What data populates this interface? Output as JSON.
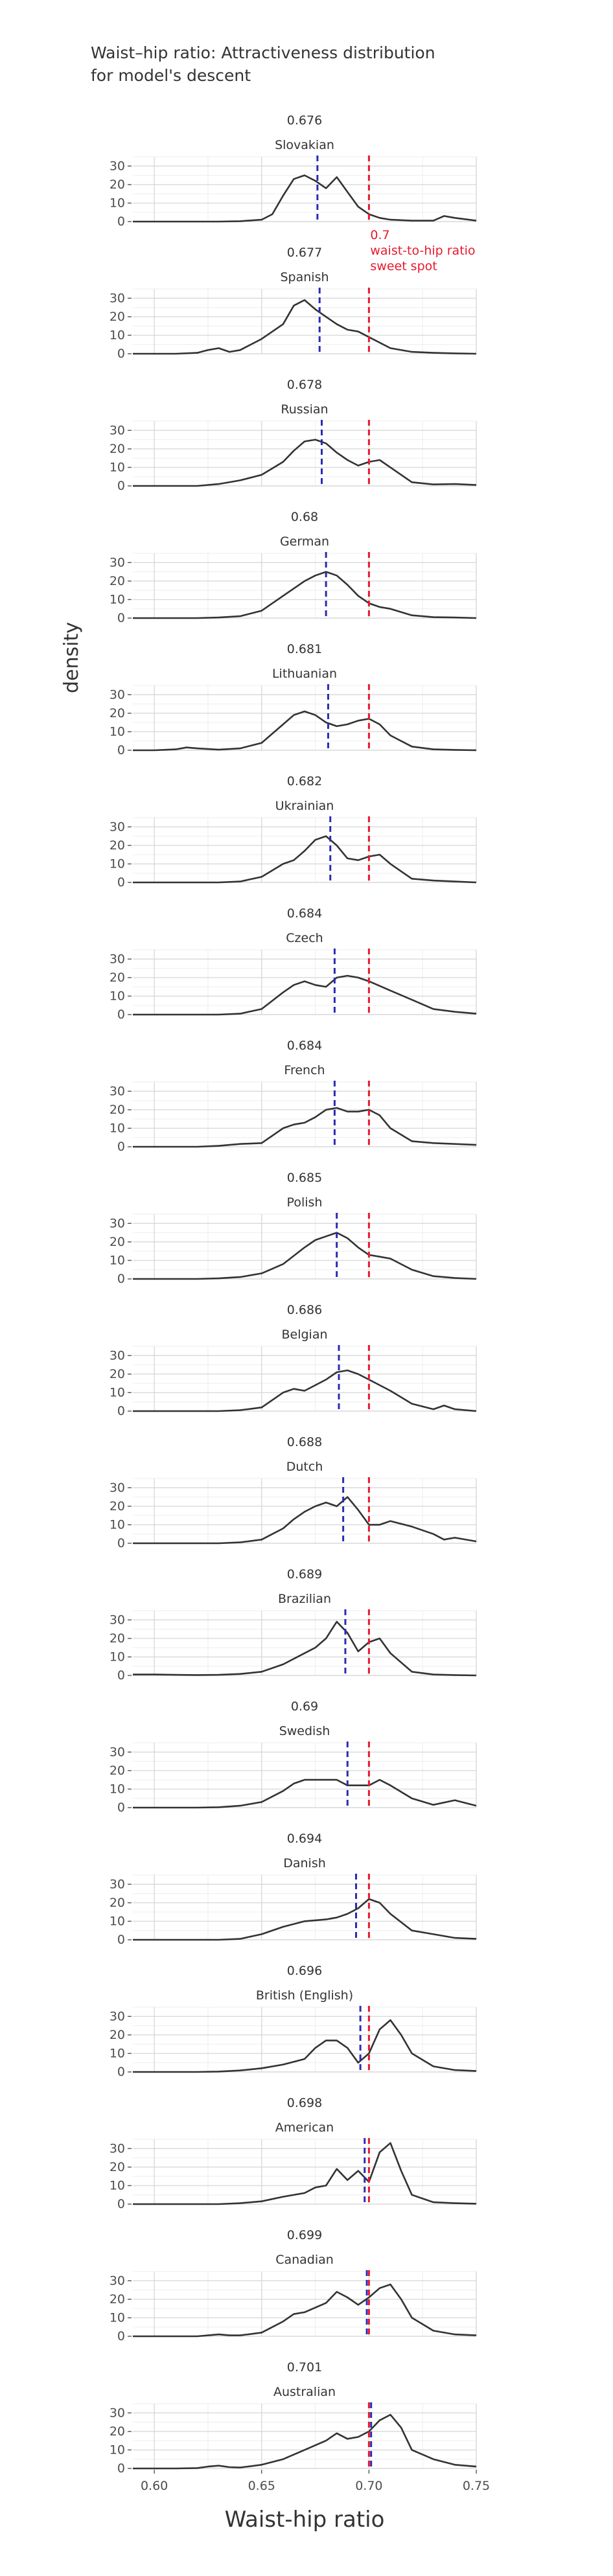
{
  "chart_data": {
    "type": "area",
    "title": [
      "Waist–hip ratio: Attractiveness distribution",
      "for model's descent"
    ],
    "xlabel": "Waist-hip ratio",
    "ylabel": "density",
    "xlim": [
      0.59,
      0.75
    ],
    "ylim": [
      0,
      35
    ],
    "x_ticks": [
      0.6,
      0.65,
      0.7,
      0.75
    ],
    "x_tick_labels": [
      "0.60",
      "0.65",
      "0.70",
      "0.75"
    ],
    "y_ticks": [
      0,
      10,
      20,
      30
    ],
    "y_tick_labels": [
      "0",
      "10",
      "20",
      "30"
    ],
    "grid": true,
    "reference_line": {
      "x": 0.7,
      "color": "#e8192c",
      "style": "dashed",
      "annotation": [
        "0.7",
        "waist-to-hip ratio",
        "sweet spot"
      ]
    },
    "mean_line_color": "#2b2bb3",
    "curve_color": "#333333",
    "facets": [
      {
        "mean_label": "0.676",
        "name": "Slovakian",
        "mean": 0.676,
        "x": [
          0.59,
          0.6,
          0.61,
          0.62,
          0.63,
          0.64,
          0.65,
          0.655,
          0.66,
          0.665,
          0.67,
          0.675,
          0.68,
          0.685,
          0.69,
          0.695,
          0.7,
          0.705,
          0.71,
          0.72,
          0.73,
          0.735,
          0.74,
          0.75
        ],
        "y": [
          0,
          0,
          0,
          0,
          0,
          0.2,
          1,
          4,
          14,
          23,
          25,
          22,
          18,
          24,
          16,
          8,
          4,
          2,
          1,
          0.5,
          0.5,
          3,
          2,
          0.5
        ]
      },
      {
        "mean_label": "0.677",
        "name": "Spanish",
        "mean": 0.677,
        "x": [
          0.59,
          0.6,
          0.61,
          0.62,
          0.625,
          0.63,
          0.635,
          0.64,
          0.65,
          0.66,
          0.665,
          0.67,
          0.675,
          0.68,
          0.685,
          0.69,
          0.695,
          0.7,
          0.71,
          0.72,
          0.73,
          0.74,
          0.75
        ],
        "y": [
          0,
          0,
          0,
          0.5,
          2,
          3,
          1,
          2,
          8,
          16,
          26,
          29,
          24,
          20,
          16,
          13,
          12,
          9,
          3,
          1,
          0.5,
          0.2,
          0
        ]
      },
      {
        "mean_label": "0.678",
        "name": "Russian",
        "mean": 0.678,
        "x": [
          0.59,
          0.6,
          0.61,
          0.62,
          0.63,
          0.64,
          0.65,
          0.66,
          0.665,
          0.67,
          0.675,
          0.68,
          0.685,
          0.69,
          0.695,
          0.7,
          0.705,
          0.71,
          0.72,
          0.73,
          0.74,
          0.75
        ],
        "y": [
          0,
          0,
          0,
          0,
          1,
          3,
          6,
          13,
          19,
          24,
          25,
          23,
          18,
          14,
          11,
          13,
          14,
          10,
          2,
          0.8,
          1,
          0.5
        ]
      },
      {
        "mean_label": "0.68",
        "name": "German",
        "mean": 0.68,
        "x": [
          0.59,
          0.6,
          0.61,
          0.62,
          0.63,
          0.64,
          0.65,
          0.66,
          0.67,
          0.675,
          0.68,
          0.685,
          0.69,
          0.695,
          0.7,
          0.705,
          0.71,
          0.72,
          0.73,
          0.74,
          0.75
        ],
        "y": [
          0,
          0,
          0,
          0,
          0.3,
          1,
          4,
          12,
          20,
          23,
          25,
          23,
          18,
          12,
          8,
          6,
          5,
          1.5,
          0.5,
          0.3,
          0
        ]
      },
      {
        "mean_label": "0.681",
        "name": "Lithuanian",
        "mean": 0.681,
        "x": [
          0.59,
          0.6,
          0.61,
          0.615,
          0.62,
          0.63,
          0.64,
          0.65,
          0.66,
          0.665,
          0.67,
          0.675,
          0.68,
          0.685,
          0.69,
          0.695,
          0.7,
          0.705,
          0.71,
          0.72,
          0.73,
          0.74,
          0.75
        ],
        "y": [
          0,
          0,
          0.5,
          1.5,
          1,
          0.3,
          1,
          4,
          14,
          19,
          21,
          19,
          15,
          13,
          14,
          16,
          17,
          14,
          8,
          2,
          0.5,
          0.2,
          0
        ]
      },
      {
        "mean_label": "0.682",
        "name": "Ukrainian",
        "mean": 0.682,
        "x": [
          0.59,
          0.6,
          0.61,
          0.62,
          0.63,
          0.64,
          0.65,
          0.66,
          0.665,
          0.67,
          0.675,
          0.68,
          0.685,
          0.69,
          0.695,
          0.7,
          0.705,
          0.71,
          0.72,
          0.73,
          0.74,
          0.75
        ],
        "y": [
          0,
          0,
          0,
          0,
          0,
          0.5,
          3,
          10,
          12,
          17,
          23,
          25,
          20,
          13,
          12,
          14,
          15,
          10,
          2,
          1,
          0.5,
          0
        ]
      },
      {
        "mean_label": "0.684",
        "name": "Czech",
        "mean": 0.684,
        "x": [
          0.59,
          0.6,
          0.61,
          0.62,
          0.63,
          0.64,
          0.65,
          0.66,
          0.665,
          0.67,
          0.675,
          0.68,
          0.685,
          0.69,
          0.695,
          0.7,
          0.71,
          0.72,
          0.73,
          0.74,
          0.75
        ],
        "y": [
          0,
          0,
          0,
          0,
          0,
          0.5,
          3,
          12,
          16,
          18,
          16,
          15,
          20,
          21,
          20,
          18,
          13,
          8,
          3,
          1.5,
          0.5
        ]
      },
      {
        "mean_label": "0.684",
        "name": "French",
        "mean": 0.684,
        "x": [
          0.59,
          0.6,
          0.61,
          0.62,
          0.63,
          0.64,
          0.65,
          0.66,
          0.665,
          0.67,
          0.675,
          0.68,
          0.685,
          0.69,
          0.695,
          0.7,
          0.705,
          0.71,
          0.72,
          0.73,
          0.74,
          0.75
        ],
        "y": [
          0,
          0,
          0,
          0,
          0.5,
          1.5,
          2,
          10,
          12,
          13,
          16,
          20,
          21,
          19,
          19,
          20,
          17,
          10,
          3,
          2,
          1.5,
          1
        ]
      },
      {
        "mean_label": "0.685",
        "name": "Polish",
        "mean": 0.685,
        "x": [
          0.59,
          0.6,
          0.61,
          0.62,
          0.63,
          0.64,
          0.65,
          0.66,
          0.67,
          0.675,
          0.68,
          0.685,
          0.69,
          0.695,
          0.7,
          0.705,
          0.71,
          0.72,
          0.73,
          0.74,
          0.75
        ],
        "y": [
          0,
          0,
          0,
          0,
          0.3,
          1,
          3,
          8,
          17,
          21,
          23,
          25,
          22,
          17,
          13,
          12,
          11,
          5,
          1.5,
          0.5,
          0
        ]
      },
      {
        "mean_label": "0.686",
        "name": "Belgian",
        "mean": 0.686,
        "x": [
          0.59,
          0.6,
          0.61,
          0.62,
          0.63,
          0.64,
          0.65,
          0.655,
          0.66,
          0.665,
          0.67,
          0.675,
          0.68,
          0.685,
          0.69,
          0.695,
          0.7,
          0.71,
          0.72,
          0.73,
          0.735,
          0.74,
          0.75
        ],
        "y": [
          0,
          0,
          0,
          0,
          0,
          0.5,
          2,
          6,
          10,
          12,
          11,
          14,
          17,
          21,
          22,
          20,
          17,
          11,
          4,
          1,
          3,
          1,
          0
        ]
      },
      {
        "mean_label": "0.688",
        "name": "Dutch",
        "mean": 0.688,
        "x": [
          0.59,
          0.6,
          0.61,
          0.62,
          0.63,
          0.64,
          0.65,
          0.66,
          0.665,
          0.67,
          0.675,
          0.68,
          0.685,
          0.69,
          0.695,
          0.7,
          0.705,
          0.71,
          0.72,
          0.73,
          0.735,
          0.74,
          0.75
        ],
        "y": [
          0,
          0,
          0,
          0,
          0,
          0.5,
          2,
          8,
          13,
          17,
          20,
          22,
          20,
          25,
          18,
          10,
          10,
          12,
          9,
          5,
          2,
          3,
          1
        ]
      },
      {
        "mean_label": "0.689",
        "name": "Brazilian",
        "mean": 0.689,
        "x": [
          0.59,
          0.6,
          0.61,
          0.62,
          0.63,
          0.64,
          0.65,
          0.66,
          0.67,
          0.675,
          0.68,
          0.685,
          0.69,
          0.695,
          0.7,
          0.705,
          0.71,
          0.72,
          0.73,
          0.74,
          0.75
        ],
        "y": [
          0.5,
          0.5,
          0.3,
          0.2,
          0.3,
          0.8,
          2,
          6,
          12,
          15,
          20,
          29,
          23,
          13,
          18,
          20,
          12,
          2,
          0.5,
          0.2,
          0
        ]
      },
      {
        "mean_label": "0.69",
        "name": "Swedish",
        "mean": 0.69,
        "x": [
          0.59,
          0.6,
          0.61,
          0.62,
          0.63,
          0.64,
          0.65,
          0.66,
          0.665,
          0.67,
          0.675,
          0.68,
          0.685,
          0.69,
          0.695,
          0.7,
          0.705,
          0.71,
          0.72,
          0.73,
          0.74,
          0.75
        ],
        "y": [
          0,
          0,
          0,
          0,
          0.2,
          1,
          3,
          9,
          13,
          15,
          15,
          15,
          15,
          12,
          12,
          12,
          15,
          12,
          5,
          1.5,
          4,
          1
        ]
      },
      {
        "mean_label": "0.694",
        "name": "Danish",
        "mean": 0.694,
        "x": [
          0.59,
          0.6,
          0.61,
          0.62,
          0.63,
          0.64,
          0.65,
          0.66,
          0.67,
          0.68,
          0.685,
          0.69,
          0.695,
          0.7,
          0.705,
          0.71,
          0.72,
          0.73,
          0.74,
          0.75
        ],
        "y": [
          0,
          0,
          0,
          0,
          0,
          0.5,
          3,
          7,
          10,
          11,
          12,
          14,
          17,
          22,
          20,
          14,
          5,
          3,
          1,
          0.5
        ]
      },
      {
        "mean_label": "0.696",
        "name": "British (English)",
        "mean": 0.696,
        "x": [
          0.59,
          0.6,
          0.61,
          0.62,
          0.63,
          0.64,
          0.65,
          0.66,
          0.67,
          0.675,
          0.68,
          0.685,
          0.69,
          0.695,
          0.7,
          0.705,
          0.71,
          0.715,
          0.72,
          0.73,
          0.74,
          0.75
        ],
        "y": [
          0,
          0,
          0,
          0,
          0.2,
          0.8,
          2,
          4,
          7,
          13,
          17,
          17,
          13,
          5,
          10,
          23,
          28,
          20,
          10,
          3,
          1,
          0.5
        ]
      },
      {
        "mean_label": "0.698",
        "name": "American",
        "mean": 0.698,
        "x": [
          0.59,
          0.6,
          0.61,
          0.62,
          0.63,
          0.64,
          0.65,
          0.66,
          0.67,
          0.675,
          0.68,
          0.685,
          0.69,
          0.695,
          0.7,
          0.705,
          0.71,
          0.715,
          0.72,
          0.73,
          0.74,
          0.75
        ],
        "y": [
          0,
          0,
          0,
          0,
          0,
          0.5,
          1.5,
          4,
          6,
          9,
          10,
          19,
          13,
          18,
          12,
          28,
          33,
          18,
          5,
          1,
          0.5,
          0.2
        ]
      },
      {
        "mean_label": "0.699",
        "name": "Canadian",
        "mean": 0.699,
        "x": [
          0.59,
          0.6,
          0.61,
          0.62,
          0.625,
          0.63,
          0.635,
          0.64,
          0.65,
          0.66,
          0.665,
          0.67,
          0.68,
          0.685,
          0.69,
          0.695,
          0.7,
          0.705,
          0.71,
          0.715,
          0.72,
          0.73,
          0.74,
          0.75
        ],
        "y": [
          0,
          0,
          0,
          0,
          0.5,
          1,
          0.5,
          0.5,
          2,
          8,
          12,
          13,
          18,
          24,
          21,
          17,
          21,
          26,
          28,
          20,
          10,
          3,
          1,
          0.5
        ]
      },
      {
        "mean_label": "0.701",
        "name": "Australian",
        "mean": 0.701,
        "x": [
          0.59,
          0.6,
          0.61,
          0.62,
          0.625,
          0.63,
          0.635,
          0.64,
          0.65,
          0.66,
          0.67,
          0.68,
          0.685,
          0.69,
          0.695,
          0.7,
          0.705,
          0.71,
          0.715,
          0.72,
          0.73,
          0.74,
          0.75
        ],
        "y": [
          0,
          0,
          0,
          0.2,
          1,
          1.5,
          0.7,
          0.5,
          2,
          5,
          10,
          15,
          19,
          16,
          17,
          20,
          26,
          29,
          22,
          10,
          5,
          2,
          1
        ]
      }
    ]
  }
}
